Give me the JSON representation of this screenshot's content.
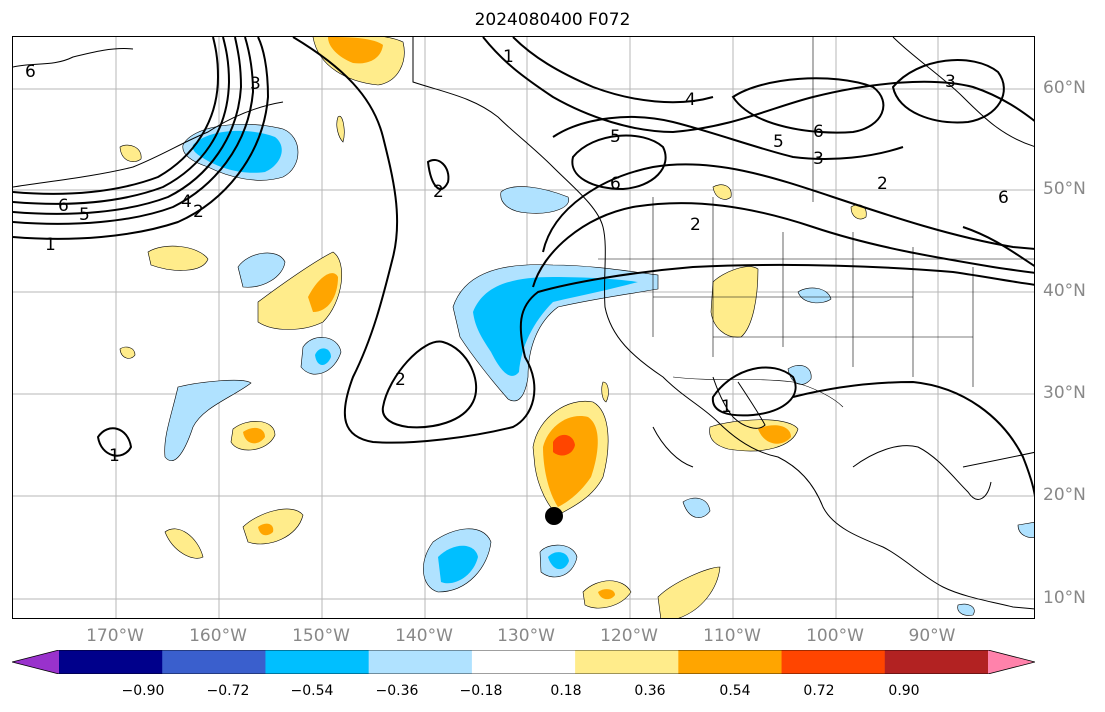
{
  "title": "2024080400 F072",
  "map": {
    "lon_labels": [
      "170°W",
      "160°W",
      "150°W",
      "140°W",
      "130°W",
      "120°W",
      "110°W",
      "100°W",
      "90°W"
    ],
    "lat_labels": [
      "60°N",
      "50°N",
      "40°N",
      "30°N",
      "20°N",
      "10°N"
    ],
    "contour_labels": [
      "6",
      "5",
      "4",
      "3",
      "2",
      "1"
    ],
    "marker": "storm-position-dot"
  },
  "colorbar": {
    "ticks": [
      "−0.90",
      "−0.72",
      "−0.54",
      "−0.36",
      "−0.18",
      "0.18",
      "0.36",
      "0.54",
      "0.72",
      "0.90"
    ],
    "colors": [
      "#9932CC",
      "#00008B",
      "#3A5FCD",
      "#00BFFF",
      "#B0E2FF",
      "#FFFFFF",
      "#FFEC8B",
      "#FFA500",
      "#FF4500",
      "#B22222",
      "#FF82AB"
    ]
  }
}
